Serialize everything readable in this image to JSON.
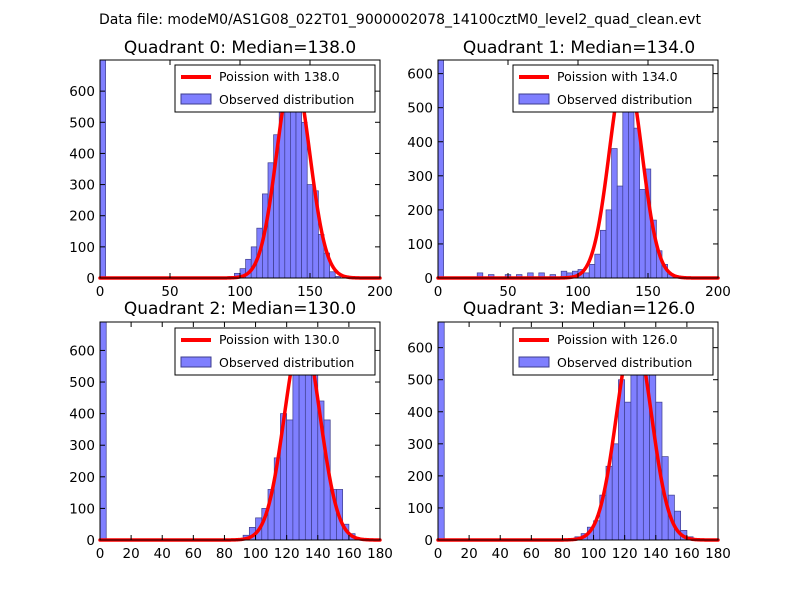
{
  "figure": {
    "suptitle": "Data file: modeM0/AS1G08_022T01_9000002078_14100cztM0_level2_quad_clean.evt"
  },
  "colors": {
    "bar_fill": "#7f7fff",
    "bar_edge": "#3d3d8c",
    "curve": "#ff0000"
  },
  "chart_data": [
    {
      "type": "bar",
      "title": "Quadrant 0: Median=138.0",
      "legend": [
        "Poission with 138.0",
        "Observed distribution"
      ],
      "legend_position": "top-right",
      "xlim": [
        0,
        200
      ],
      "ylim": [
        0,
        700
      ],
      "xticks": [
        0,
        50,
        100,
        150,
        200
      ],
      "yticks": [
        0,
        100,
        200,
        300,
        400,
        500,
        600
      ],
      "bin_width": 4,
      "bin_starts": [
        0,
        92,
        96,
        100,
        104,
        108,
        112,
        116,
        120,
        124,
        128,
        132,
        136,
        140,
        144,
        148,
        152,
        156,
        160,
        164,
        168
      ],
      "counts": [
        700,
        5,
        15,
        30,
        60,
        100,
        160,
        270,
        370,
        460,
        560,
        600,
        630,
        600,
        500,
        300,
        280,
        140,
        80,
        20,
        5
      ],
      "poisson_mean": 138.0,
      "poisson_peak": 665
    },
    {
      "type": "bar",
      "title": "Quadrant 1: Median=134.0",
      "legend": [
        "Poission with 134.0",
        "Observed distribution"
      ],
      "legend_position": "top-right",
      "xlim": [
        0,
        200
      ],
      "ylim": [
        0,
        640
      ],
      "xticks": [
        0,
        50,
        100,
        150,
        200
      ],
      "yticks": [
        0,
        100,
        200,
        300,
        400,
        500,
        600
      ],
      "bin_width": 4,
      "bin_starts": [
        0,
        28,
        36,
        48,
        56,
        64,
        72,
        80,
        88,
        92,
        96,
        100,
        104,
        108,
        112,
        116,
        120,
        124,
        128,
        132,
        136,
        140,
        144,
        148,
        152,
        156,
        160,
        164,
        168
      ],
      "counts": [
        640,
        15,
        10,
        10,
        10,
        15,
        15,
        10,
        20,
        15,
        20,
        25,
        15,
        40,
        70,
        140,
        200,
        380,
        270,
        500,
        610,
        440,
        260,
        320,
        170,
        80,
        40,
        10,
        5
      ],
      "poisson_mean": 134.0,
      "poisson_peak": 615
    },
    {
      "type": "bar",
      "title": "Quadrant 2: Median=130.0",
      "legend": [
        "Poission with 130.0",
        "Observed distribution"
      ],
      "legend_position": "top-right",
      "xlim": [
        0,
        180
      ],
      "ylim": [
        0,
        690
      ],
      "xticks": [
        0,
        20,
        40,
        60,
        80,
        100,
        120,
        140,
        160,
        180
      ],
      "yticks": [
        0,
        100,
        200,
        300,
        400,
        500,
        600
      ],
      "bin_width": 4,
      "bin_starts": [
        0,
        88,
        92,
        96,
        100,
        104,
        108,
        112,
        116,
        120,
        124,
        128,
        132,
        136,
        140,
        144,
        148,
        152,
        156,
        160
      ],
      "counts": [
        690,
        5,
        15,
        40,
        70,
        100,
        160,
        260,
        400,
        380,
        560,
        640,
        650,
        600,
        440,
        380,
        160,
        160,
        50,
        20
      ],
      "poisson_mean": 130.0,
      "poisson_peak": 655
    },
    {
      "type": "bar",
      "title": "Quadrant 3: Median=126.0",
      "legend": [
        "Poission with 126.0",
        "Observed distribution"
      ],
      "legend_position": "top-right",
      "xlim": [
        0,
        180
      ],
      "ylim": [
        0,
        680
      ],
      "xticks": [
        0,
        20,
        40,
        60,
        80,
        100,
        120,
        140,
        160,
        180
      ],
      "yticks": [
        0,
        100,
        200,
        300,
        400,
        500,
        600
      ],
      "bin_width": 4,
      "bin_starts": [
        0,
        84,
        88,
        92,
        96,
        100,
        104,
        108,
        112,
        116,
        120,
        124,
        128,
        132,
        136,
        140,
        144,
        148,
        152,
        156,
        160,
        164
      ],
      "counts": [
        680,
        5,
        10,
        20,
        40,
        60,
        140,
        230,
        300,
        500,
        430,
        570,
        650,
        610,
        540,
        430,
        260,
        140,
        90,
        30,
        10,
        5
      ],
      "poisson_mean": 126.0,
      "poisson_peak": 645
    }
  ]
}
